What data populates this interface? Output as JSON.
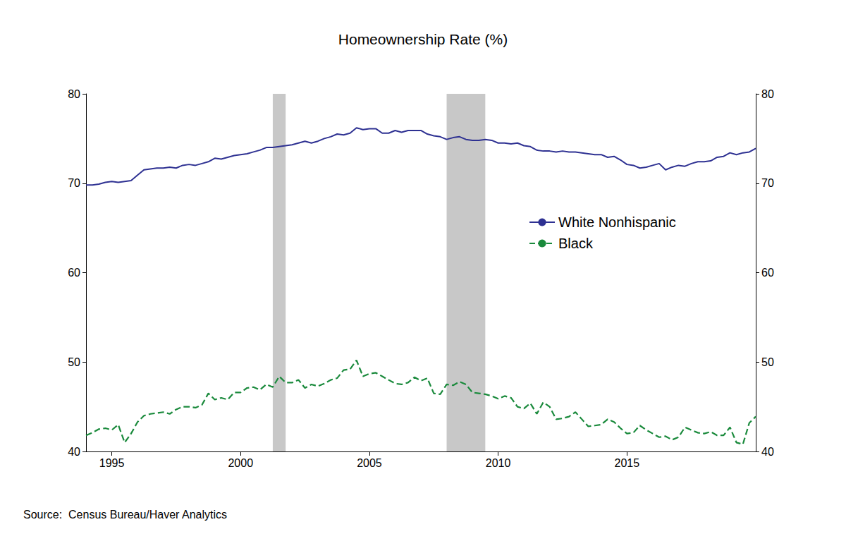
{
  "chart_data": {
    "type": "line",
    "title": "Homeownership Rate (%)",
    "source": "Source:  Census Bureau/Haver Analytics",
    "x": [
      1994,
      1994.25,
      1994.5,
      1994.75,
      1995,
      1995.25,
      1995.5,
      1995.75,
      1996,
      1996.25,
      1996.5,
      1996.75,
      1997,
      1997.25,
      1997.5,
      1997.75,
      1998,
      1998.25,
      1998.5,
      1998.75,
      1999,
      1999.25,
      1999.5,
      1999.75,
      2000,
      2000.25,
      2000.5,
      2000.75,
      2001,
      2001.25,
      2001.5,
      2001.75,
      2002,
      2002.25,
      2002.5,
      2002.75,
      2003,
      2003.25,
      2003.5,
      2003.75,
      2004,
      2004.25,
      2004.5,
      2004.75,
      2005,
      2005.25,
      2005.5,
      2005.75,
      2006,
      2006.25,
      2006.5,
      2006.75,
      2007,
      2007.25,
      2007.5,
      2007.75,
      2008,
      2008.25,
      2008.5,
      2008.75,
      2009,
      2009.25,
      2009.5,
      2009.75,
      2010,
      2010.25,
      2010.5,
      2010.75,
      2011,
      2011.25,
      2011.5,
      2011.75,
      2012,
      2012.25,
      2012.5,
      2012.75,
      2013,
      2013.25,
      2013.5,
      2013.75,
      2014,
      2014.25,
      2014.5,
      2014.75,
      2015,
      2015.25,
      2015.5,
      2015.75,
      2016,
      2016.25,
      2016.5,
      2016.75,
      2017,
      2017.25,
      2017.5,
      2017.75,
      2018,
      2018.25,
      2018.5,
      2018.75,
      2019,
      2019.25,
      2019.5,
      2019.75,
      2020
    ],
    "series": [
      {
        "name": "White Nonhispanic",
        "color": "#2e3192",
        "line_style": "solid",
        "values": [
          69.8,
          69.8,
          69.9,
          70.1,
          70.2,
          70.1,
          70.2,
          70.3,
          70.9,
          71.5,
          71.6,
          71.7,
          71.7,
          71.8,
          71.7,
          72.0,
          72.1,
          72.0,
          72.2,
          72.4,
          72.8,
          72.7,
          72.9,
          73.1,
          73.2,
          73.3,
          73.5,
          73.7,
          74.0,
          74.0,
          74.1,
          74.2,
          74.3,
          74.5,
          74.7,
          74.5,
          74.7,
          75.0,
          75.2,
          75.5,
          75.4,
          75.6,
          76.2,
          76.0,
          76.1,
          76.1,
          75.6,
          75.6,
          75.9,
          75.7,
          75.9,
          75.9,
          75.9,
          75.5,
          75.3,
          75.2,
          74.9,
          75.1,
          75.2,
          74.9,
          74.8,
          74.8,
          74.9,
          74.8,
          74.5,
          74.5,
          74.4,
          74.5,
          74.2,
          74.1,
          73.7,
          73.6,
          73.6,
          73.5,
          73.6,
          73.5,
          73.5,
          73.4,
          73.3,
          73.2,
          73.2,
          72.9,
          73.0,
          72.6,
          72.1,
          72.0,
          71.7,
          71.8,
          72.0,
          72.2,
          71.5,
          71.8,
          72.0,
          71.9,
          72.2,
          72.4,
          72.4,
          72.5,
          72.9,
          73.0,
          73.4,
          73.2,
          73.4,
          73.5,
          73.9
        ]
      },
      {
        "name": "Black",
        "color": "#1a8a3c",
        "line_style": "dashed",
        "values": [
          41.8,
          42.1,
          42.5,
          42.6,
          42.4,
          43.0,
          41.0,
          42.0,
          43.3,
          44.0,
          44.2,
          44.3,
          44.4,
          44.2,
          44.7,
          45.0,
          45.0,
          44.9,
          45.2,
          46.5,
          45.8,
          46.0,
          45.8,
          46.6,
          46.6,
          47.1,
          47.2,
          46.9,
          47.5,
          47.2,
          48.4,
          47.7,
          47.7,
          48.0,
          47.1,
          47.5,
          47.3,
          47.6,
          48.0,
          48.2,
          49.1,
          49.2,
          50.2,
          48.4,
          48.7,
          48.8,
          48.4,
          48.0,
          47.6,
          47.5,
          47.7,
          48.3,
          47.9,
          48.2,
          46.5,
          46.4,
          47.5,
          47.4,
          47.8,
          47.5,
          46.6,
          46.5,
          46.4,
          46.2,
          45.9,
          46.2,
          46.0,
          45.0,
          44.8,
          45.4,
          44.2,
          45.5,
          45.0,
          43.6,
          43.7,
          43.9,
          44.4,
          43.6,
          42.8,
          42.9,
          43.0,
          43.6,
          43.3,
          42.6,
          42.0,
          42.1,
          42.9,
          42.4,
          42.0,
          41.6,
          41.7,
          41.3,
          41.6,
          42.7,
          42.4,
          42.1,
          42.0,
          42.2,
          41.8,
          41.8,
          42.7,
          41.0,
          40.8,
          43.2,
          43.9
        ]
      }
    ],
    "shaded_periods": [
      [
        2001.25,
        2001.75
      ],
      [
        2008.0,
        2009.5
      ]
    ],
    "xlim": [
      1994,
      2020
    ],
    "xticks": [
      1995,
      2000,
      2005,
      2010,
      2015
    ],
    "ylim": [
      40,
      80
    ],
    "yticks": [
      40,
      50,
      60,
      70,
      80
    ],
    "grid": false,
    "legend": "right"
  }
}
